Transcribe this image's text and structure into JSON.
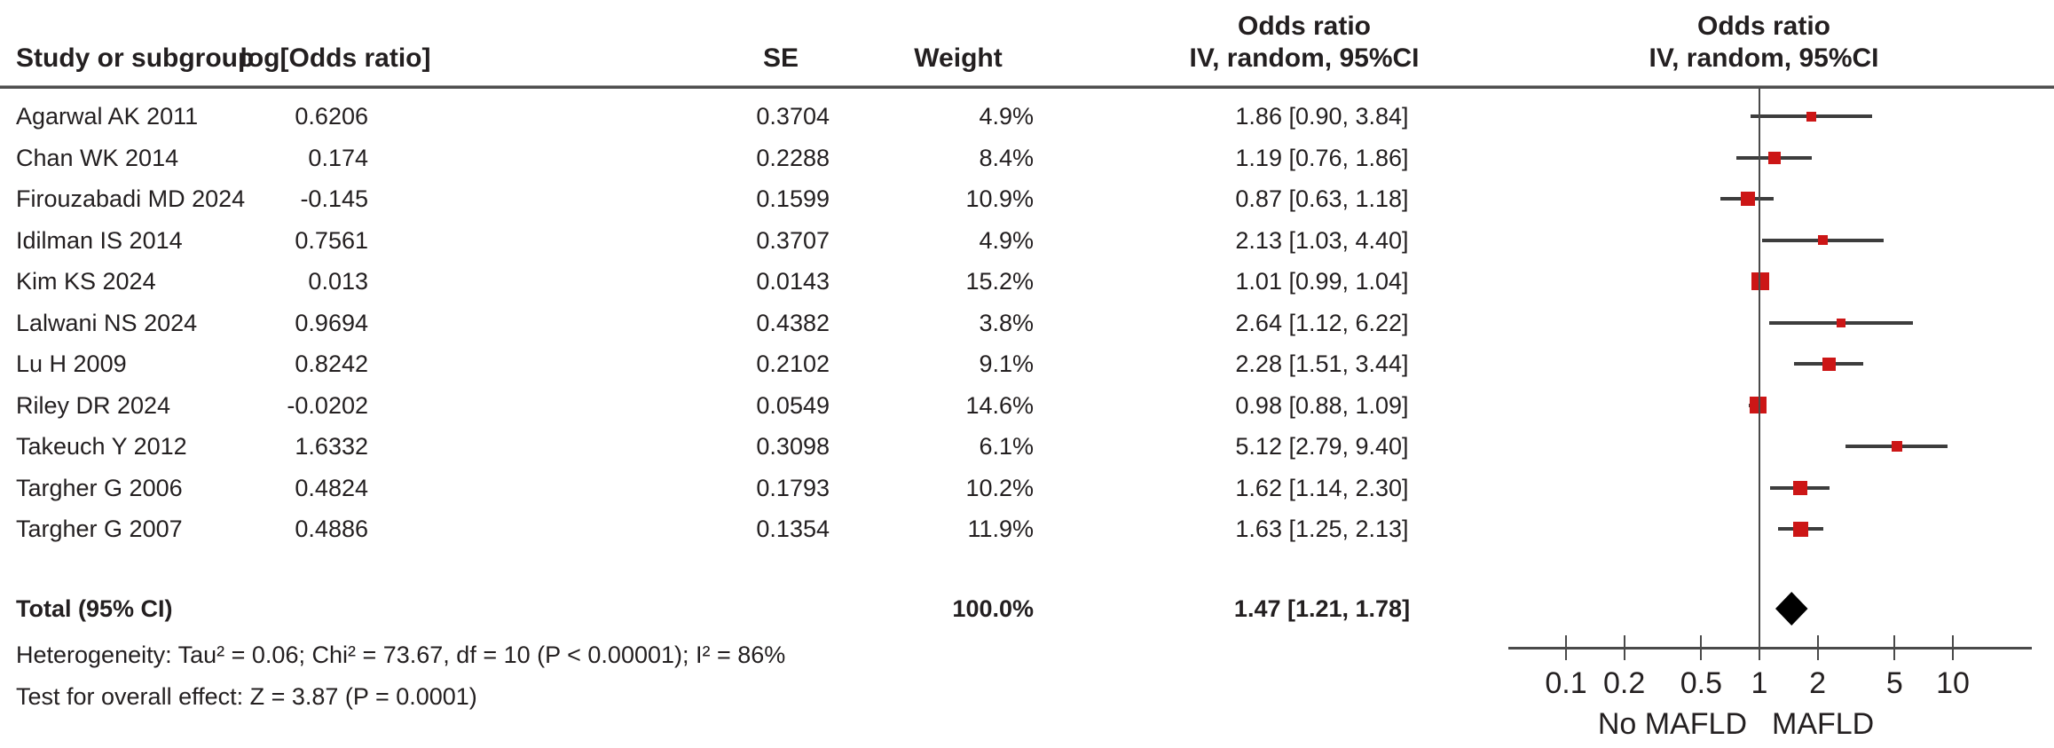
{
  "header": {
    "study_col": "Study or subgroup",
    "logor_col": "log[Odds ratio]",
    "se_col": "SE",
    "weight_col": "Weight",
    "or_text_col_line1": "Odds ratio",
    "or_text_col_line2": "IV, random, 95%CI",
    "or_plot_col_line1": "Odds ratio",
    "or_plot_col_line2": "IV, random, 95%CI"
  },
  "chart_data": {
    "type": "forest",
    "effect_measure": "Odds ratio",
    "model": "IV, random, 95%CI",
    "studies": [
      {
        "name": "Agarwal AK 2011",
        "log_or": "0.6206",
        "se": "0.3704",
        "weight": "4.9%",
        "weight_value": 4.9,
        "or": 1.86,
        "ci_low": 0.9,
        "ci_high": 3.84,
        "or_ci_label": "1.86 [0.90, 3.84]"
      },
      {
        "name": "Chan WK 2014",
        "log_or": "0.174",
        "se": "0.2288",
        "weight": "8.4%",
        "weight_value": 8.4,
        "or": 1.19,
        "ci_low": 0.76,
        "ci_high": 1.86,
        "or_ci_label": "1.19 [0.76, 1.86]"
      },
      {
        "name": "Firouzabadi MD 2024",
        "log_or": "-0.145",
        "se": "0.1599",
        "weight": "10.9%",
        "weight_value": 10.9,
        "or": 0.87,
        "ci_low": 0.63,
        "ci_high": 1.18,
        "or_ci_label": "0.87 [0.63, 1.18]"
      },
      {
        "name": "Idilman IS 2014",
        "log_or": "0.7561",
        "se": "0.3707",
        "weight": "4.9%",
        "weight_value": 4.9,
        "or": 2.13,
        "ci_low": 1.03,
        "ci_high": 4.4,
        "or_ci_label": "2.13 [1.03, 4.40]"
      },
      {
        "name": "Kim KS 2024",
        "log_or": "0.013",
        "se": "0.0143",
        "weight": "15.2%",
        "weight_value": 15.2,
        "or": 1.01,
        "ci_low": 0.99,
        "ci_high": 1.04,
        "or_ci_label": "1.01 [0.99, 1.04]"
      },
      {
        "name": "Lalwani NS 2024",
        "log_or": "0.9694",
        "se": "0.4382",
        "weight": "3.8%",
        "weight_value": 3.8,
        "or": 2.64,
        "ci_low": 1.12,
        "ci_high": 6.22,
        "or_ci_label": "2.64 [1.12, 6.22]"
      },
      {
        "name": "Lu H 2009",
        "log_or": "0.8242",
        "se": "0.2102",
        "weight": "9.1%",
        "weight_value": 9.1,
        "or": 2.28,
        "ci_low": 1.51,
        "ci_high": 3.44,
        "or_ci_label": "2.28 [1.51, 3.44]"
      },
      {
        "name": "Riley DR 2024",
        "log_or": "-0.0202",
        "se": "0.0549",
        "weight": "14.6%",
        "weight_value": 14.6,
        "or": 0.98,
        "ci_low": 0.88,
        "ci_high": 1.09,
        "or_ci_label": "0.98 [0.88, 1.09]"
      },
      {
        "name": "Takeuch Y 2012",
        "log_or": "1.6332",
        "se": "0.3098",
        "weight": "6.1%",
        "weight_value": 6.1,
        "or": 5.12,
        "ci_low": 2.79,
        "ci_high": 9.4,
        "or_ci_label": "5.12 [2.79, 9.40]"
      },
      {
        "name": "Targher G 2006",
        "log_or": "0.4824",
        "se": "0.1793",
        "weight": "10.2%",
        "weight_value": 10.2,
        "or": 1.62,
        "ci_low": 1.14,
        "ci_high": 2.3,
        "or_ci_label": "1.62 [1.14, 2.30]"
      },
      {
        "name": "Targher G 2007",
        "log_or": "0.4886",
        "se": "0.1354",
        "weight": "11.9%",
        "weight_value": 11.9,
        "or": 1.63,
        "ci_low": 1.25,
        "ci_high": 2.13,
        "or_ci_label": "1.63 [1.25, 2.13]"
      }
    ],
    "total": {
      "label": "Total (95% CI)",
      "weight": "100.0%",
      "or": 1.47,
      "ci_low": 1.21,
      "ci_high": 1.78,
      "or_ci_label": "1.47 [1.21, 1.78]"
    },
    "footnotes": {
      "heterogeneity": "Heterogeneity: Tau² = 0.06; Chi² = 73.67, df = 10 (P < 0.00001); I² = 86%",
      "overall_effect": "Test for overall effect: Z = 3.87 (P = 0.0001)"
    },
    "axis": {
      "scale": "log",
      "ticks": [
        0.1,
        0.2,
        0.5,
        1,
        2,
        5,
        10
      ],
      "tick_labels": [
        "0.1",
        "0.2",
        "0.5",
        "1",
        "2",
        "5",
        "10"
      ],
      "left_label": "No MAFLD",
      "right_label": "MAFLD"
    },
    "colors": {
      "marker": "#cc1616",
      "ci_line": "#3d3d3d",
      "diamond": "#000000",
      "text": "#231f20"
    }
  }
}
